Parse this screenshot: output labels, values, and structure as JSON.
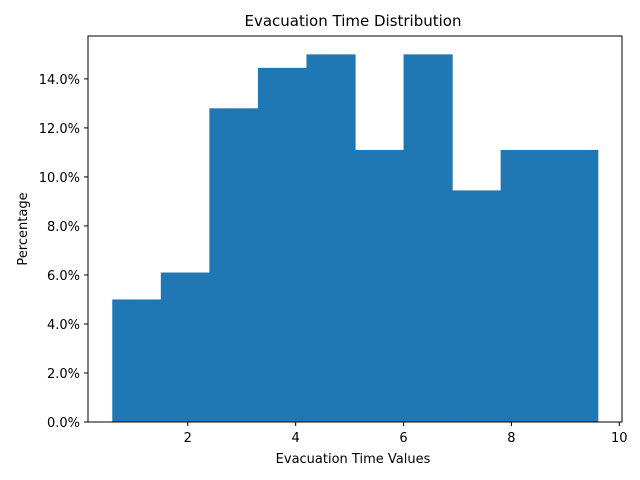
{
  "chart_data": {
    "type": "bar",
    "title": "Evacuation Time Distribution",
    "xlabel": "Evacuation Time Values",
    "ylabel": "Percentage",
    "bin_edges": [
      0.6,
      1.5,
      2.4,
      3.3,
      4.2,
      5.1,
      6.0,
      6.9,
      7.8,
      8.7,
      9.6
    ],
    "values": [
      5.0,
      6.1,
      12.8,
      14.45,
      15.0,
      11.1,
      15.0,
      9.45,
      11.1,
      11.1
    ],
    "xlim": [
      0.15,
      10.05
    ],
    "ylim": [
      0,
      15.75
    ],
    "xticks": [
      2,
      4,
      6,
      8,
      10
    ],
    "xtick_labels": [
      "2",
      "4",
      "6",
      "8",
      "10"
    ],
    "yticks": [
      0,
      2,
      4,
      6,
      8,
      10,
      12,
      14
    ],
    "ytick_labels": [
      "0.0%",
      "2.0%",
      "4.0%",
      "6.0%",
      "8.0%",
      "10.0%",
      "12.0%",
      "14.0%"
    ],
    "bar_color": "#1f77b4",
    "grid": false,
    "legend": "none"
  }
}
